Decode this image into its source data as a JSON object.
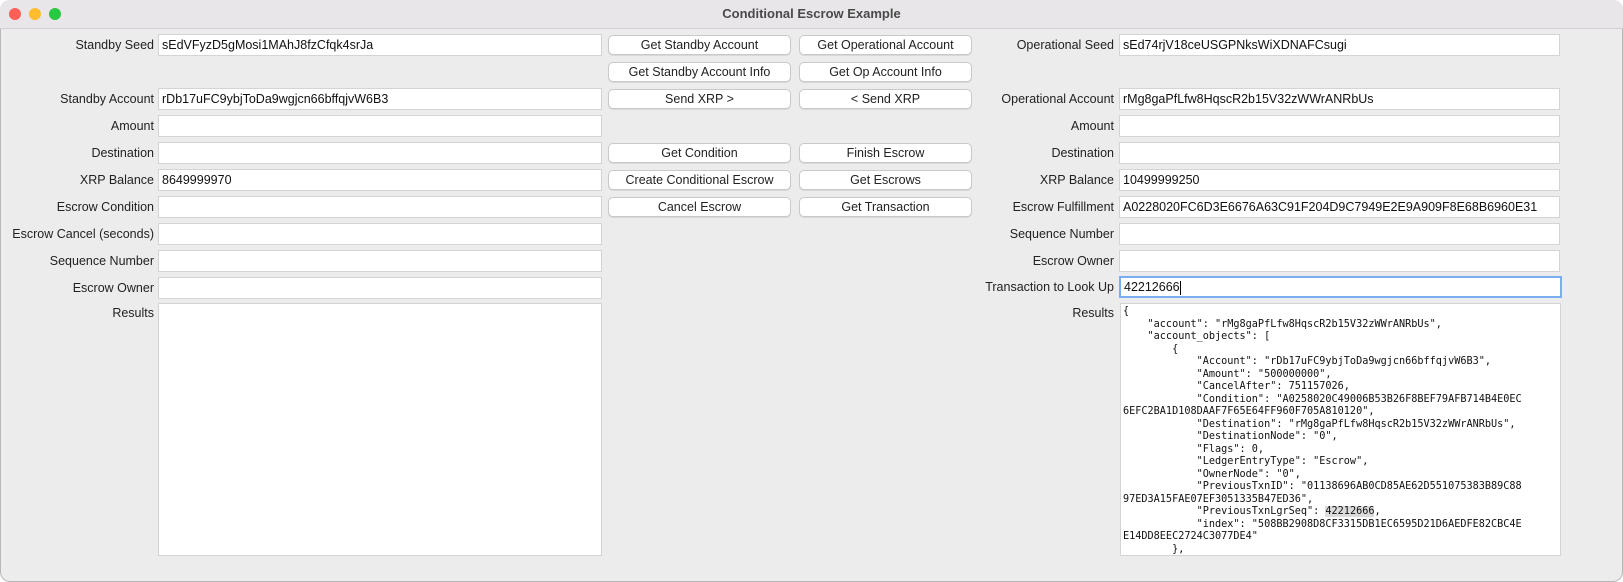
{
  "window": {
    "title": "Conditional Escrow Example"
  },
  "standby": {
    "fields": [
      {
        "label": "Standby Seed",
        "value": "sEdVFyzD5gMosi1MAhJ8fzCfqk4srJa"
      },
      {
        "label": "Standby Account",
        "value": "rDb17uFC9ybjToDa9wgjcn66bffqjvW6B3"
      },
      {
        "label": "Amount",
        "value": ""
      },
      {
        "label": "Destination",
        "value": ""
      },
      {
        "label": "XRP Balance",
        "value": "8649999970"
      },
      {
        "label": "Escrow Condition",
        "value": ""
      },
      {
        "label": "Escrow Cancel (seconds)",
        "value": ""
      },
      {
        "label": "Sequence Number",
        "value": ""
      },
      {
        "label": "Escrow Owner",
        "value": ""
      }
    ],
    "results_label": "Results",
    "results": ""
  },
  "buttons": {
    "left": [
      "Get Standby Account",
      "Get Standby Account Info",
      "Send XRP >",
      "Get Condition",
      "Create Conditional Escrow",
      "Cancel Escrow"
    ],
    "right": [
      "Get Operational Account",
      "Get Op Account Info",
      "< Send XRP",
      "Finish Escrow",
      "Get Escrows",
      "Get Transaction"
    ]
  },
  "operational": {
    "fields": [
      {
        "label": "Operational Seed",
        "value": "sEd74rjV18ceUSGPNksWiXDNAFCsugi"
      },
      {
        "label": "Operational Account",
        "value": "rMg8gaPfLfw8HqscR2b15V32zWWrANRbUs"
      },
      {
        "label": "Amount",
        "value": ""
      },
      {
        "label": "Destination",
        "value": ""
      },
      {
        "label": "XRP Balance",
        "value": "10499999250"
      },
      {
        "label": "Escrow Fulfillment",
        "value": "A0228020FC6D3E6676A63C91F204D9C7949E2E9A909F8E68B6960E31"
      },
      {
        "label": "Sequence Number",
        "value": ""
      },
      {
        "label": "Escrow Owner",
        "value": ""
      },
      {
        "label": "Transaction to Look Up",
        "value": "42212666"
      }
    ],
    "results_label": "Results",
    "results_before": "{\n    \"account\": \"rMg8gaPfLfw8HqscR2b15V32zWWrANRbUs\",\n    \"account_objects\": [\n        {\n            \"Account\": \"rDb17uFC9ybjToDa9wgjcn66bffqjvW6B3\",\n            \"Amount\": \"500000000\",\n            \"CancelAfter\": 751157026,\n            \"Condition\": \"A0258020C49006B53B26F8BEF79AFB714B4E0EC\n6EFC2BA1D108DAAF7F65E64FF960F705A810120\",\n            \"Destination\": \"rMg8gaPfLfw8HqscR2b15V32zWWrANRbUs\",\n            \"DestinationNode\": \"0\",\n            \"Flags\": 0,\n            \"LedgerEntryType\": \"Escrow\",\n            \"OwnerNode\": \"0\",\n            \"PreviousTxnID\": \"01138696AB0CD85AE62D551075383B89C88\n97ED3A15FAE07EF3051335B47ED36\",\n            \"PreviousTxnLgrSeq\": ",
    "results_highlight": "42212666",
    "results_after": ",\n            \"index\": \"508BB2908D8CF3315DB1EC6595D21D6AEDFE82CBC4E\nE14DD8EEC2724C3077DE4\"\n        },"
  }
}
